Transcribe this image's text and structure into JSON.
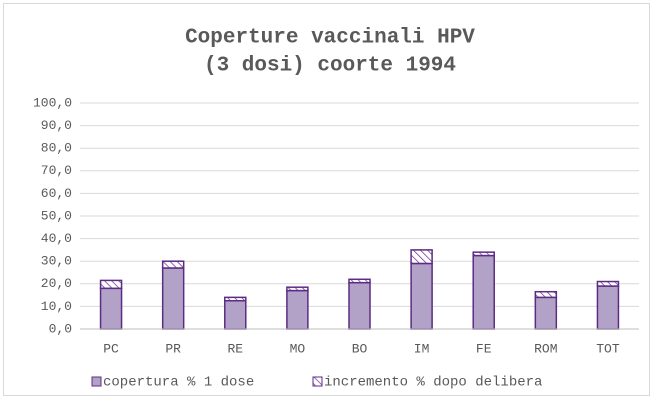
{
  "chart_data": {
    "type": "stacked_bar",
    "title": [
      "Coperture vaccinali HPV",
      "(3 dosi) coorte 1994"
    ],
    "categories": [
      "PC",
      "PR",
      "RE",
      "MO",
      "BO",
      "IM",
      "FE",
      "ROM",
      "TOT"
    ],
    "series": [
      {
        "name": "copertura % 1 dose",
        "color": "#b3a2c7",
        "values": [
          18,
          27,
          12.5,
          17,
          20.5,
          29,
          32.5,
          14,
          19
        ]
      },
      {
        "name": "incremento % dopo delibera",
        "color": "#7030a0",
        "pattern": "hatch",
        "values": [
          3.5,
          3,
          1.5,
          1.5,
          1.5,
          6,
          1.5,
          2.5,
          2
        ]
      }
    ],
    "ylim": [
      0,
      100
    ],
    "yticks": [
      {
        "value": 0,
        "label": "0,0"
      },
      {
        "value": 10,
        "label": "10,0"
      },
      {
        "value": 20,
        "label": "20,0"
      },
      {
        "value": 30,
        "label": "30,0"
      },
      {
        "value": 40,
        "label": "40,0"
      },
      {
        "value": 50,
        "label": "50,0"
      },
      {
        "value": 60,
        "label": "60,0"
      },
      {
        "value": 70,
        "label": "70,0"
      },
      {
        "value": 80,
        "label": "80,0"
      },
      {
        "value": 90,
        "label": "90,0"
      },
      {
        "value": 100,
        "label": "100,0"
      }
    ],
    "grid": true,
    "legend": "bottom"
  }
}
